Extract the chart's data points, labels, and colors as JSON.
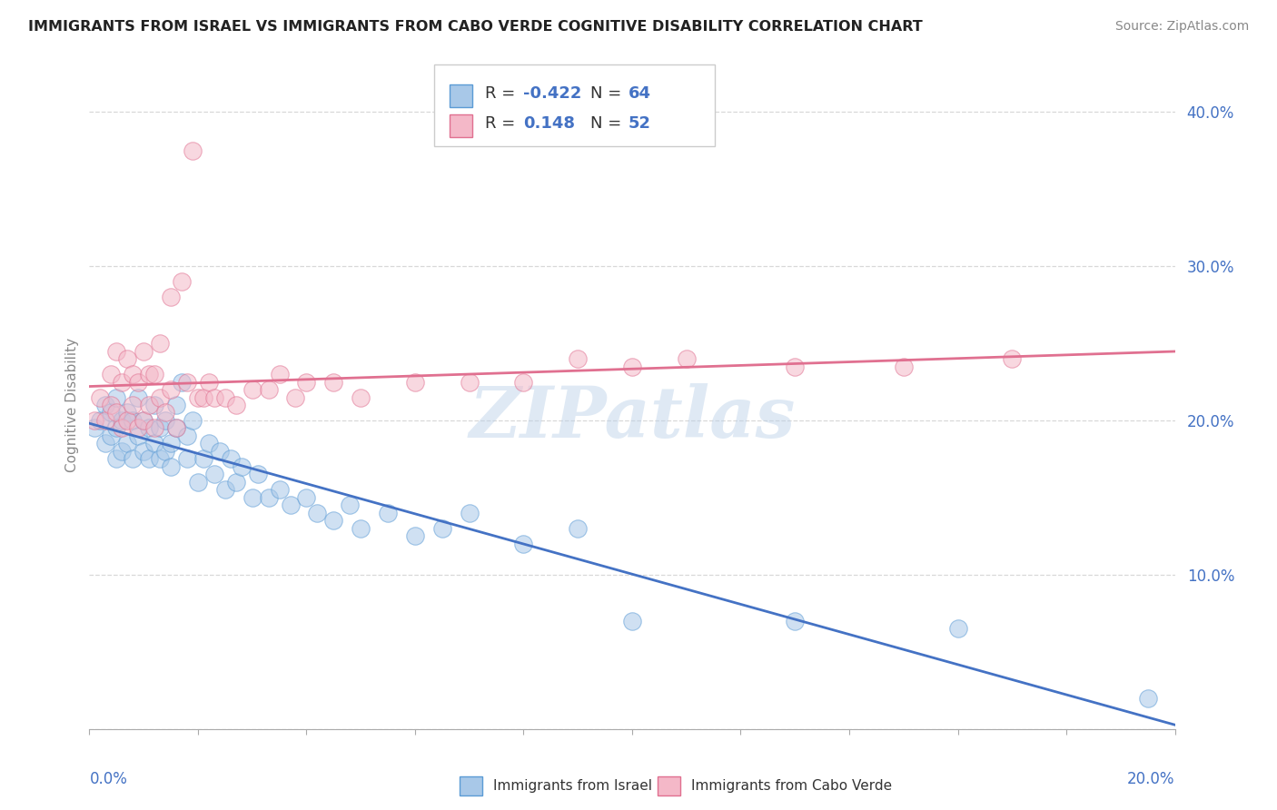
{
  "title": "IMMIGRANTS FROM ISRAEL VS IMMIGRANTS FROM CABO VERDE COGNITIVE DISABILITY CORRELATION CHART",
  "source": "Source: ZipAtlas.com",
  "ylabel": "Cognitive Disability",
  "series": [
    {
      "name": "Immigrants from Israel",
      "color": "#a8c8e8",
      "edge_color": "#5b9bd5",
      "line_color": "#4472c4",
      "R": -0.422,
      "N": 64,
      "x": [
        0.001,
        0.002,
        0.003,
        0.003,
        0.004,
        0.004,
        0.005,
        0.005,
        0.005,
        0.006,
        0.006,
        0.007,
        0.007,
        0.008,
        0.008,
        0.009,
        0.009,
        0.01,
        0.01,
        0.011,
        0.011,
        0.012,
        0.012,
        0.013,
        0.013,
        0.014,
        0.014,
        0.015,
        0.015,
        0.016,
        0.016,
        0.017,
        0.018,
        0.018,
        0.019,
        0.02,
        0.021,
        0.022,
        0.023,
        0.024,
        0.025,
        0.026,
        0.027,
        0.028,
        0.03,
        0.031,
        0.033,
        0.035,
        0.037,
        0.04,
        0.042,
        0.045,
        0.048,
        0.05,
        0.055,
        0.06,
        0.065,
        0.07,
        0.08,
        0.09,
        0.1,
        0.13,
        0.16,
        0.195
      ],
      "y": [
        0.195,
        0.2,
        0.185,
        0.21,
        0.19,
        0.205,
        0.175,
        0.195,
        0.215,
        0.18,
        0.2,
        0.185,
        0.205,
        0.175,
        0.2,
        0.19,
        0.215,
        0.18,
        0.2,
        0.175,
        0.195,
        0.185,
        0.21,
        0.175,
        0.195,
        0.18,
        0.2,
        0.17,
        0.185,
        0.195,
        0.21,
        0.225,
        0.175,
        0.19,
        0.2,
        0.16,
        0.175,
        0.185,
        0.165,
        0.18,
        0.155,
        0.175,
        0.16,
        0.17,
        0.15,
        0.165,
        0.15,
        0.155,
        0.145,
        0.15,
        0.14,
        0.135,
        0.145,
        0.13,
        0.14,
        0.125,
        0.13,
        0.14,
        0.12,
        0.13,
        0.07,
        0.07,
        0.065,
        0.02
      ]
    },
    {
      "name": "Immigrants from Cabo Verde",
      "color": "#f4b8c8",
      "edge_color": "#e07090",
      "line_color": "#e07090",
      "R": 0.148,
      "N": 52,
      "x": [
        0.001,
        0.002,
        0.003,
        0.004,
        0.004,
        0.005,
        0.005,
        0.006,
        0.006,
        0.007,
        0.007,
        0.008,
        0.008,
        0.009,
        0.009,
        0.01,
        0.01,
        0.011,
        0.011,
        0.012,
        0.012,
        0.013,
        0.013,
        0.014,
        0.015,
        0.015,
        0.016,
        0.017,
        0.018,
        0.019,
        0.02,
        0.021,
        0.022,
        0.023,
        0.025,
        0.027,
        0.03,
        0.033,
        0.035,
        0.038,
        0.04,
        0.045,
        0.05,
        0.06,
        0.07,
        0.08,
        0.09,
        0.1,
        0.11,
        0.13,
        0.15,
        0.17
      ],
      "y": [
        0.2,
        0.215,
        0.2,
        0.21,
        0.23,
        0.205,
        0.245,
        0.195,
        0.225,
        0.2,
        0.24,
        0.21,
        0.23,
        0.195,
        0.225,
        0.2,
        0.245,
        0.21,
        0.23,
        0.195,
        0.23,
        0.215,
        0.25,
        0.205,
        0.22,
        0.28,
        0.195,
        0.29,
        0.225,
        0.375,
        0.215,
        0.215,
        0.225,
        0.215,
        0.215,
        0.21,
        0.22,
        0.22,
        0.23,
        0.215,
        0.225,
        0.225,
        0.215,
        0.225,
        0.225,
        0.225,
        0.24,
        0.235,
        0.24,
        0.235,
        0.235,
        0.24
      ]
    }
  ],
  "xlim": [
    0.0,
    0.2
  ],
  "ylim": [
    0.0,
    0.42
  ],
  "yticks": [
    0.0,
    0.1,
    0.2,
    0.3,
    0.4
  ],
  "ytick_labels": [
    "",
    "10.0%",
    "20.0%",
    "30.0%",
    "40.0%"
  ],
  "xticks": [
    0.0,
    0.02,
    0.04,
    0.06,
    0.08,
    0.1,
    0.12,
    0.14,
    0.16,
    0.18,
    0.2
  ],
  "grid_color": "#d8d8d8",
  "background_color": "#ffffff",
  "watermark": "ZIPatlas",
  "marker_size": 14,
  "marker_alpha": 0.55
}
